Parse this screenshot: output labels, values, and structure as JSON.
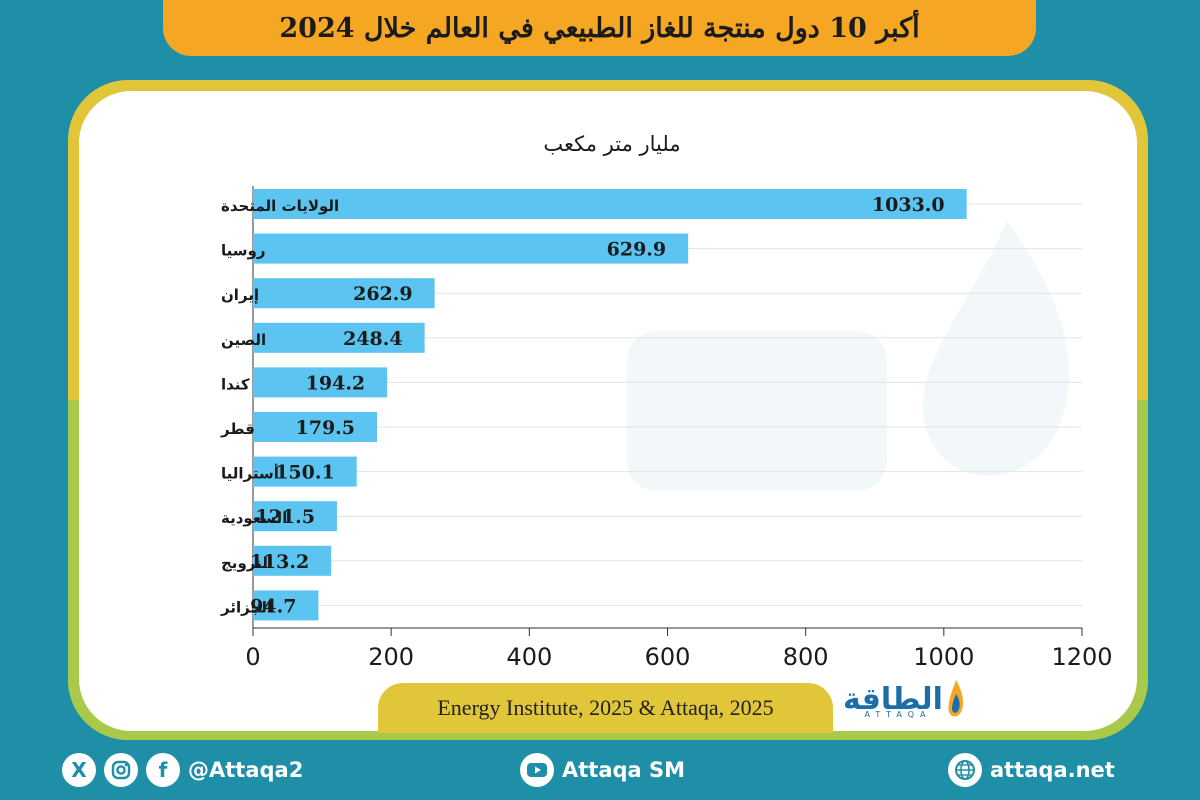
{
  "title": "أكبر 10 دول منتجة للغاز الطبيعي في العالم خلال 2024",
  "chart_data": {
    "type": "bar",
    "orientation": "horizontal",
    "unit_label": "مليار متر مكعب",
    "categories": [
      "الولايات المتحدة",
      "روسيا",
      "إيران",
      "الصين",
      "كندا",
      "قطر",
      "أستراليا",
      "السعودية",
      "النرويج",
      "الجزائر"
    ],
    "values": [
      1033.0,
      629.9,
      262.9,
      248.4,
      194.2,
      179.5,
      150.1,
      121.5,
      113.2,
      94.7
    ],
    "value_labels": [
      "1033.0",
      "629.9",
      "262.9",
      "248.4",
      "194.2",
      "179.5",
      "150.1",
      "121.5",
      "113.2",
      "94.7"
    ],
    "xlim": [
      0,
      1200
    ],
    "xticks": [
      "0",
      "200",
      "400",
      "600",
      "800",
      "1000",
      "1200"
    ],
    "grid": true,
    "bar_color": "#5bc4f0"
  },
  "source": "Energy Institute, 2025 & Attaqa, 2025",
  "logo": {
    "text": "الطاقة",
    "sub": "ATTAQA"
  },
  "footer": {
    "social_handle": "@Attaqa2",
    "youtube": "Attaqa SM",
    "website": "attaqa.net"
  },
  "colors": {
    "background": "#1e8fa6",
    "banner": "#f5a623",
    "frame": "#e2c63a",
    "bar": "#5bc4f0"
  }
}
